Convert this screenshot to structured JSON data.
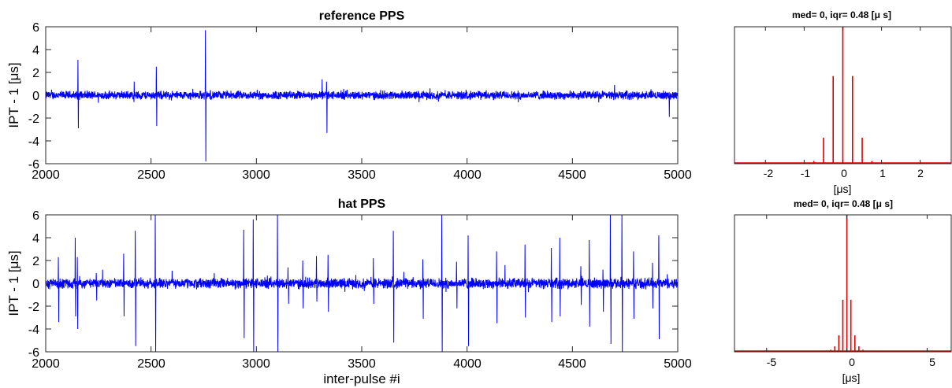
{
  "colors": {
    "trace": "#0000ff",
    "hist": "#dd0000",
    "axis": "#262626"
  },
  "chart_data": [
    {
      "id": "ts1",
      "type": "line",
      "title": "reference PPS",
      "xlabel": "",
      "ylabel": "IPT - 1  [μs]",
      "xlim": [
        2000,
        5000
      ],
      "ylim": [
        -6,
        6
      ],
      "xticks": [
        "2000",
        "2500",
        "3000",
        "3500",
        "4000",
        "4500",
        "5000"
      ],
      "yticks": [
        "-6",
        "-4",
        "-2",
        "0",
        "2",
        "4",
        "6"
      ],
      "baseline_noise_amplitude": 0.45,
      "spikes": [
        {
          "x": 2153,
          "y": 3.1
        },
        {
          "x": 2155,
          "y": -2.9
        },
        {
          "x": 2525,
          "y": 2.5
        },
        {
          "x": 2527,
          "y": -2.7
        },
        {
          "x": 2758,
          "y": 5.7
        },
        {
          "x": 2760,
          "y": -5.8
        },
        {
          "x": 3312,
          "y": 1.4
        },
        {
          "x": 3333,
          "y": 1.2
        },
        {
          "x": 3335,
          "y": -3.3
        },
        {
          "x": 2420,
          "y": 1.2
        },
        {
          "x": 4960,
          "y": -1.9
        },
        {
          "x": 4700,
          "y": 0.9
        }
      ]
    },
    {
      "id": "h1",
      "type": "bar",
      "title": "med= 0, iqr= 0.48 [μ s]",
      "xlabel": "[μs]",
      "xlim": [
        -2.8,
        2.8
      ],
      "ylim": [
        0,
        1
      ],
      "xticks": [
        "-2",
        "-1",
        "0",
        "1",
        "2"
      ],
      "x": [
        -0.75,
        -0.5,
        -0.25,
        0,
        0.25,
        0.5,
        0.75
      ],
      "values": [
        0.02,
        0.19,
        0.64,
        1.0,
        0.64,
        0.19,
        0.02
      ]
    },
    {
      "id": "ts2",
      "type": "line",
      "title": "hat PPS",
      "xlabel": "inter-pulse #i",
      "ylabel": "IPT - 1  [μs]",
      "xlim": [
        2000,
        5000
      ],
      "ylim": [
        -6,
        6
      ],
      "xticks": [
        "2000",
        "2500",
        "3000",
        "3500",
        "4000",
        "4500",
        "5000"
      ],
      "yticks": [
        "-6",
        "-4",
        "-2",
        "0",
        "2",
        "4",
        "6"
      ],
      "baseline_noise_amplitude": 0.55,
      "spikes": [
        {
          "x": 2060,
          "y": 2.3
        },
        {
          "x": 2062,
          "y": -3.4
        },
        {
          "x": 2140,
          "y": 4.0
        },
        {
          "x": 2142,
          "y": -2.9
        },
        {
          "x": 2150,
          "y": 2.3
        },
        {
          "x": 2152,
          "y": -4.0
        },
        {
          "x": 2240,
          "y": 0.9
        },
        {
          "x": 2242,
          "y": -1.5
        },
        {
          "x": 2270,
          "y": 1.2
        },
        {
          "x": 2370,
          "y": 2.6
        },
        {
          "x": 2372,
          "y": -2.9
        },
        {
          "x": 2425,
          "y": 4.6
        },
        {
          "x": 2427,
          "y": -5.5
        },
        {
          "x": 2520,
          "y": 6.0
        },
        {
          "x": 2522,
          "y": -6.0
        },
        {
          "x": 2600,
          "y": 1.1
        },
        {
          "x": 2800,
          "y": 0.9
        },
        {
          "x": 2940,
          "y": 4.7
        },
        {
          "x": 2942,
          "y": -4.8
        },
        {
          "x": 2985,
          "y": 5.6
        },
        {
          "x": 2987,
          "y": -6.0
        },
        {
          "x": 3100,
          "y": 6.0
        },
        {
          "x": 3102,
          "y": -6.0
        },
        {
          "x": 3150,
          "y": 1.4
        },
        {
          "x": 3153,
          "y": -1.8
        },
        {
          "x": 3220,
          "y": 2.0
        },
        {
          "x": 3222,
          "y": -2.2
        },
        {
          "x": 3285,
          "y": 2.4
        },
        {
          "x": 3287,
          "y": -1.6
        },
        {
          "x": 3340,
          "y": 2.5
        },
        {
          "x": 3342,
          "y": -2.5
        },
        {
          "x": 3555,
          "y": 2.2
        },
        {
          "x": 3557,
          "y": -1.8
        },
        {
          "x": 3650,
          "y": 4.6
        },
        {
          "x": 3652,
          "y": -5.2
        },
        {
          "x": 3700,
          "y": 1.0
        },
        {
          "x": 3790,
          "y": 2.1
        },
        {
          "x": 3792,
          "y": -3.1
        },
        {
          "x": 3880,
          "y": 6.0
        },
        {
          "x": 3882,
          "y": -6.0
        },
        {
          "x": 3950,
          "y": 1.9
        },
        {
          "x": 3952,
          "y": -2.2
        },
        {
          "x": 4005,
          "y": 4.2
        },
        {
          "x": 4007,
          "y": -5.5
        },
        {
          "x": 4140,
          "y": 2.8
        },
        {
          "x": 4142,
          "y": -3.5
        },
        {
          "x": 4180,
          "y": 1.6
        },
        {
          "x": 4275,
          "y": 3.4
        },
        {
          "x": 4277,
          "y": -3.0
        },
        {
          "x": 4400,
          "y": 3.1
        },
        {
          "x": 4402,
          "y": -3.4
        },
        {
          "x": 4440,
          "y": 4.0
        },
        {
          "x": 4442,
          "y": -2.9
        },
        {
          "x": 4540,
          "y": 1.5
        },
        {
          "x": 4542,
          "y": -1.9
        },
        {
          "x": 4580,
          "y": 3.8
        },
        {
          "x": 4582,
          "y": -3.8
        },
        {
          "x": 4645,
          "y": 1.2
        },
        {
          "x": 4647,
          "y": -2.5
        },
        {
          "x": 4680,
          "y": 6.0
        },
        {
          "x": 4683,
          "y": -5.3
        },
        {
          "x": 4735,
          "y": 6.0
        },
        {
          "x": 4737,
          "y": -6.0
        },
        {
          "x": 4790,
          "y": 2.8
        },
        {
          "x": 4792,
          "y": -3.1
        },
        {
          "x": 4880,
          "y": 1.8
        },
        {
          "x": 4882,
          "y": -2.2
        },
        {
          "x": 4910,
          "y": 4.2
        },
        {
          "x": 4912,
          "y": -4.9
        },
        {
          "x": 4950,
          "y": 0.8
        }
      ]
    },
    {
      "id": "h2",
      "type": "bar",
      "title": "med= 0, iqr= 0.48 [μ s]",
      "xlabel": "[μs]",
      "xlim": [
        -7,
        6.5
      ],
      "ylim": [
        0,
        1
      ],
      "xticks": [
        "-5",
        "0",
        "5"
      ],
      "x": [
        -1.0,
        -0.75,
        -0.5,
        -0.25,
        0,
        0.25,
        0.5,
        0.75,
        1.0
      ],
      "values": [
        0.015,
        0.04,
        0.12,
        0.38,
        1.0,
        0.38,
        0.12,
        0.04,
        0.015
      ]
    }
  ]
}
